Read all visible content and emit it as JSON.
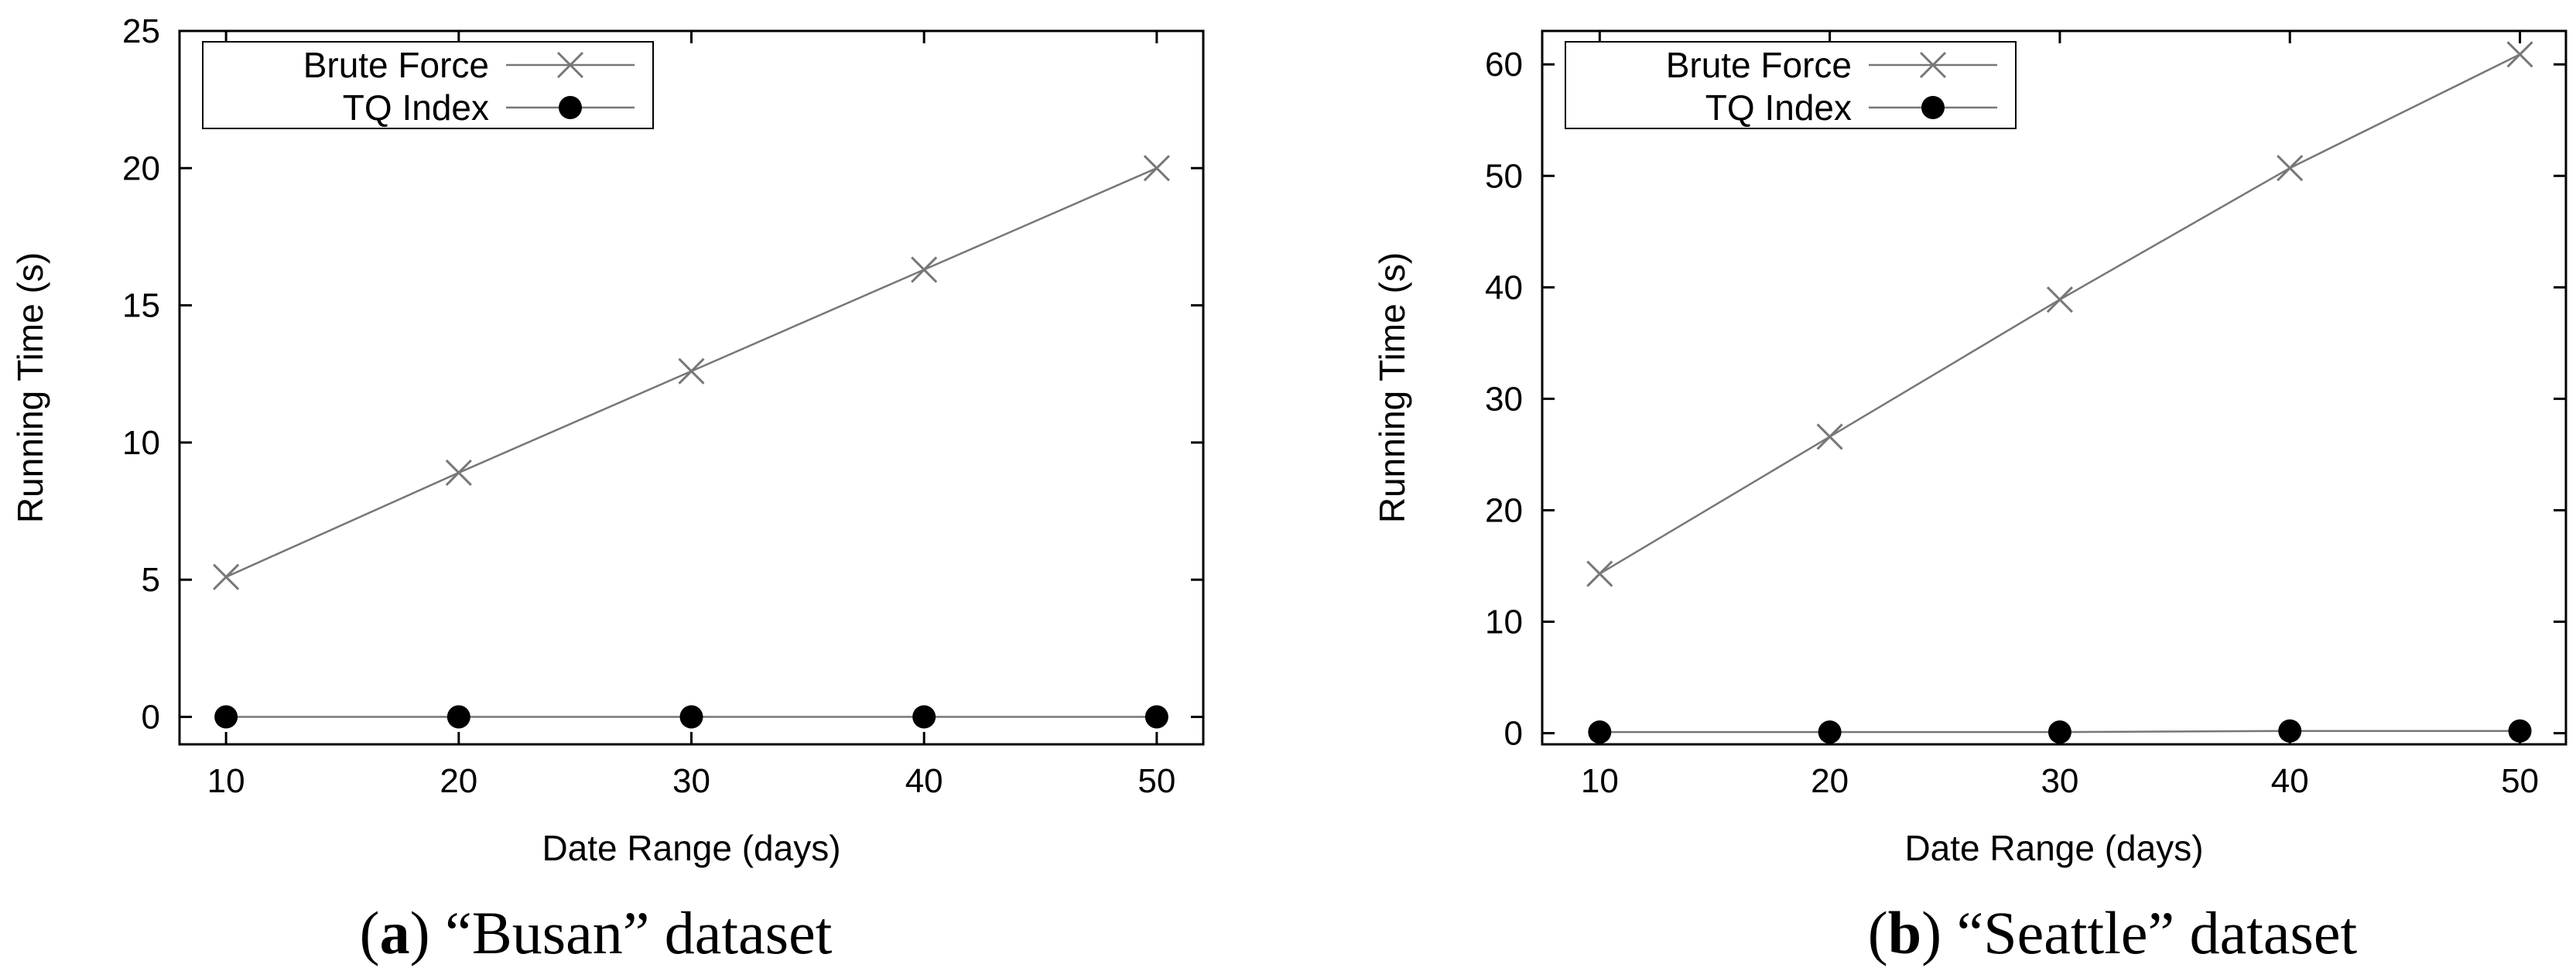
{
  "chart_data": [
    {
      "type": "line",
      "caption_letter": "a",
      "caption_text": "“Busan” dataset",
      "xlabel": "Date Range (days)",
      "ylabel": "Running Time (s)",
      "xlim": [
        8,
        52
      ],
      "ylim": [
        -1,
        25
      ],
      "xticks": [
        10,
        20,
        30,
        40,
        50
      ],
      "yticks": [
        0,
        5,
        10,
        15,
        20,
        25
      ],
      "x": [
        10,
        20,
        30,
        40,
        50
      ],
      "legend_position": "top-left",
      "grid": false,
      "series": [
        {
          "name": "Brute Force",
          "marker": "cross",
          "values": [
            5.1,
            8.9,
            12.6,
            16.3,
            20.0
          ]
        },
        {
          "name": "TQ Index",
          "marker": "filled-circle",
          "values": [
            0.0,
            0.0,
            0.0,
            0.0,
            0.0
          ]
        }
      ],
      "colors": {
        "line": "#777777",
        "marker": "#000000"
      }
    },
    {
      "type": "line",
      "caption_letter": "b",
      "caption_text": "“Seattle” dataset",
      "xlabel": "Date Range (days)",
      "ylabel": "Running Time (s)",
      "xlim": [
        7.5,
        52
      ],
      "ylim": [
        -1,
        63
      ],
      "xticks": [
        10,
        20,
        30,
        40,
        50
      ],
      "yticks": [
        0,
        10,
        20,
        30,
        40,
        50,
        60
      ],
      "x": [
        10,
        20,
        30,
        40,
        50
      ],
      "legend_position": "top-left",
      "grid": false,
      "series": [
        {
          "name": "Brute Force",
          "marker": "cross",
          "values": [
            14.3,
            26.6,
            38.9,
            50.7,
            60.9
          ]
        },
        {
          "name": "TQ Index",
          "marker": "filled-circle",
          "values": [
            0.1,
            0.1,
            0.1,
            0.2,
            0.2
          ]
        }
      ],
      "colors": {
        "line": "#777777",
        "marker": "#000000"
      }
    }
  ]
}
